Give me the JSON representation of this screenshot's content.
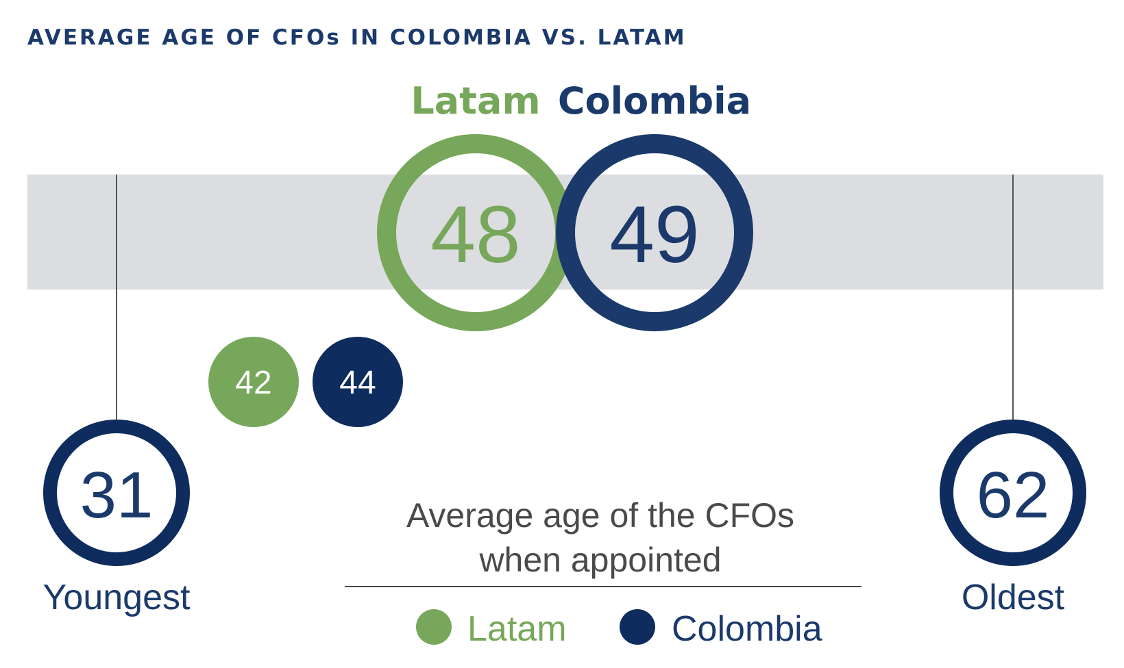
{
  "colors": {
    "latam": "#77a75a",
    "colombia": "#1b3a6b",
    "colombia_dark": "#0f2c5e",
    "band": "#dcdde0",
    "line": "#555555",
    "text_gray": "#4a4a4a"
  },
  "chart_data": {
    "type": "dot",
    "title": "AVERAGE AGE OF CFOs IN COLOMBIA VS. LATAM",
    "series_labels": {
      "latam": "Latam",
      "colombia": "Colombia"
    },
    "average_age": {
      "latam": 48,
      "colombia": 49
    },
    "average_age_when_appointed": {
      "latam": 42,
      "colombia": 44
    },
    "range": {
      "youngest": {
        "value": 31,
        "label": "Youngest"
      },
      "oldest": {
        "value": 62,
        "label": "Oldest"
      }
    },
    "annotation": {
      "line1": "Average age of the CFOs",
      "line2": "when appointed"
    },
    "legend": {
      "placement": "bottom-center",
      "entries": [
        "Latam",
        "Colombia"
      ]
    }
  }
}
